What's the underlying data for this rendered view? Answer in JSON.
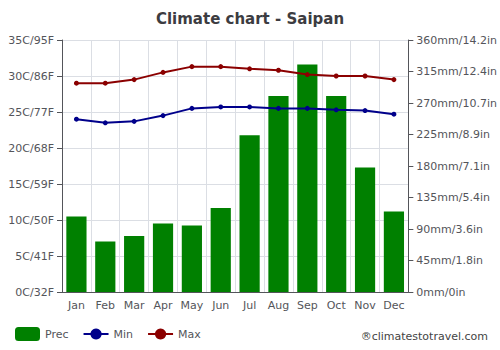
{
  "chart_data": {
    "type": "bar",
    "title": "Climate chart - Saipan",
    "categories": [
      "Jan",
      "Feb",
      "Mar",
      "Apr",
      "May",
      "Jun",
      "Jul",
      "Aug",
      "Sep",
      "Oct",
      "Nov",
      "Dec"
    ],
    "series": [
      {
        "name": "Prec",
        "type": "bar",
        "axis": "y2",
        "color": "#008000",
        "values": [
          108,
          72,
          80,
          98,
          95,
          120,
          224,
          280,
          325,
          280,
          178,
          115
        ]
      },
      {
        "name": "Min",
        "type": "line",
        "color": "#00008B",
        "marker": "circle",
        "line_style": "solid",
        "values": [
          24.0,
          23.5,
          23.7,
          24.5,
          25.5,
          25.7,
          25.7,
          25.5,
          25.5,
          25.3,
          25.2,
          24.7
        ]
      },
      {
        "name": "Max",
        "type": "line",
        "color": "#8B0000",
        "marker": "circle",
        "line_style": "solid",
        "values": [
          29.0,
          29.0,
          29.5,
          30.5,
          31.3,
          31.3,
          31.0,
          30.8,
          30.2,
          30.0,
          30.0,
          29.5
        ]
      }
    ],
    "ylim": [
      0,
      35
    ],
    "yticks": [
      {
        "value": 0,
        "label": "0C/32F"
      },
      {
        "value": 5,
        "label": "5C/41F"
      },
      {
        "value": 10,
        "label": "10C/50F"
      },
      {
        "value": 15,
        "label": "15C/59F"
      },
      {
        "value": 20,
        "label": "20C/68F"
      },
      {
        "value": 25,
        "label": "25C/77F"
      },
      {
        "value": 30,
        "label": "30C/86F"
      },
      {
        "value": 35,
        "label": "35C/95F"
      }
    ],
    "y2lim": [
      0,
      360
    ],
    "y2ticks": [
      {
        "value": 0,
        "label": "0mm/0in"
      },
      {
        "value": 45,
        "label": "45mm/1.8in"
      },
      {
        "value": 90,
        "label": "90mm/3.6in"
      },
      {
        "value": 135,
        "label": "135mm/5.4in"
      },
      {
        "value": 180,
        "label": "180mm/7.1in"
      },
      {
        "value": 225,
        "label": "225mm/8.9in"
      },
      {
        "value": 270,
        "label": "270mm/10.7in"
      },
      {
        "value": 315,
        "label": "315mm/12.4in"
      },
      {
        "value": 360,
        "label": "360mm/14.2in"
      }
    ],
    "grid": true,
    "legend": "lower left",
    "annotations": [
      "®climatestotravel.com"
    ]
  }
}
